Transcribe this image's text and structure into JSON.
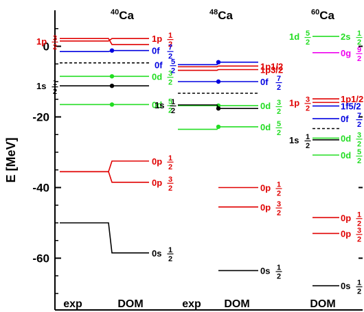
{
  "chart_data": {
    "type": "level-scheme",
    "ylabel": "E [MeV]",
    "ylim": [
      -75,
      10
    ],
    "yticks": [
      0,
      -20,
      -40,
      -60
    ],
    "grid": false,
    "nuclei": [
      {
        "mass": "40",
        "element": "Ca",
        "columns": [
          "exp",
          "DOM"
        ],
        "levels": [
          {
            "color": "#e00000",
            "exp": 1.5,
            "dom": 2.2,
            "left_label": {
              "orb": "1p",
              "num": "3",
              "den": "2"
            },
            "right_label": {
              "orb": "1p",
              "num": "1",
              "den": "2"
            }
          },
          {
            "color": "#e00000",
            "exp": 2.2,
            "dom": 0.5
          },
          {
            "color": "#0000e0",
            "exp": -1.5,
            "dom": -1.2,
            "dot": true,
            "right_label": {
              "orb": "0f",
              "num": "7",
              "den": "2"
            }
          },
          {
            "color": "#000000",
            "dash": true,
            "exp": -4.7,
            "dom": -4.7
          },
          {
            "color": "#22dd22",
            "exp": -8.5,
            "dom": -8.5,
            "dot": true,
            "right_label": {
              "orb": "0d",
              "num": "3",
              "den": "2"
            }
          },
          {
            "color": "#000000",
            "exp": -11.2,
            "dom": -11.2,
            "dot": true,
            "left_label": {
              "orb": "1s",
              "num": "1",
              "den": "2"
            }
          },
          {
            "color": "#22dd22",
            "exp": -16.5,
            "dom": -16.5,
            "dot": true,
            "right_label": {
              "orb": "0d",
              "num": "5",
              "den": "2"
            }
          },
          {
            "color": "#e00000",
            "exp": -35.5,
            "dom": -32.5,
            "right_label": {
              "orb": "0p",
              "num": "1",
              "den": "2"
            }
          },
          {
            "color": "#e00000",
            "exp": -35.5,
            "dom": -38.5,
            "right_label": {
              "orb": "0p",
              "num": "3",
              "den": "2"
            }
          },
          {
            "color": "#000000",
            "exp": -50.0,
            "dom": -58.5,
            "right_label": {
              "orb": "0s",
              "num": "1",
              "den": "2"
            }
          }
        ]
      },
      {
        "mass": "48",
        "element": "Ca",
        "columns": [
          "exp",
          "DOM"
        ],
        "levels": [
          {
            "color": "#0000e0",
            "exp": -5.2,
            "dom": -4.5,
            "dot": true,
            "left_label": {
              "orb": "0f",
              "num": "5",
              "den": "2"
            }
          },
          {
            "color": "#e00000",
            "exp": -5.8,
            "dom": -5.6,
            "right_label": {
              "text": "1p1/2"
            }
          },
          {
            "color": "#e00000",
            "exp": -6.8,
            "dom": -6.6,
            "right_label": {
              "text": "1p3/2"
            }
          },
          {
            "color": "#0000e0",
            "exp": -10.0,
            "dom": -10.0,
            "dot": true,
            "right_label": {
              "orb": "0f",
              "num": "7",
              "den": "2"
            }
          },
          {
            "color": "#000000",
            "dash": true,
            "exp": -13.3,
            "dom": -13.3
          },
          {
            "color": "#22dd22",
            "exp": -16.8,
            "dom": -16.8,
            "dot": true,
            "right_label": {
              "orb": "0d",
              "num": "3",
              "den": "2"
            }
          },
          {
            "color": "#000000",
            "exp": -16.6,
            "dom": -17.6,
            "dot": true,
            "left_label": {
              "orb": "1s",
              "num": "1",
              "den": "2"
            }
          },
          {
            "color": "#22dd22",
            "exp": -23.5,
            "dom": -22.8,
            "dot": true,
            "right_label": {
              "orb": "0d",
              "num": "5",
              "den": "2"
            }
          },
          {
            "color": "#e00000",
            "dom": -40.0,
            "right_label": {
              "orb": "0p",
              "num": "1",
              "den": "2"
            }
          },
          {
            "color": "#e00000",
            "dom": -45.5,
            "right_label": {
              "orb": "0p",
              "num": "3",
              "den": "2"
            }
          },
          {
            "color": "#000000",
            "dom": -63.5,
            "right_label": {
              "orb": "0s",
              "num": "1",
              "den": "2"
            }
          }
        ]
      },
      {
        "mass": "60",
        "element": "Ca",
        "columns": [
          "DOM"
        ],
        "levels": [
          {
            "color": "#22dd22",
            "dom": 2.8,
            "left_label": {
              "orb": "1d",
              "num": "5",
              "den": "2"
            },
            "right_label": {
              "orb": "2s",
              "num": "1",
              "den": "2"
            }
          },
          {
            "color": "#ee00ee",
            "dom": -1.8,
            "right_label": {
              "orb": "0g",
              "num": "9",
              "den": "2"
            }
          },
          {
            "color": "#e00000",
            "dom": -14.9,
            "right_label": {
              "text": "1p1/2"
            }
          },
          {
            "color": "#e00000",
            "dom": -15.9
          },
          {
            "color": "#0000e0",
            "dom": -16.9,
            "right_label": {
              "text": "1f5/2"
            }
          },
          {
            "color": "#0000e0",
            "dom": -20.5,
            "right_label": {
              "orb": "0f",
              "num": "7",
              "den": "2"
            }
          },
          {
            "color": "#000000",
            "dash": true,
            "dom": -23.3
          },
          {
            "color": "#000000",
            "dom": -26.5,
            "left_label": {
              "orb": "1s",
              "num": "1",
              "den": "2"
            }
          },
          {
            "color": "#22dd22",
            "dom": -26.0,
            "right_label": {
              "orb": "0d",
              "num": "3",
              "den": "2"
            }
          },
          {
            "color": "#22dd22",
            "dom": -30.8,
            "right_label": {
              "orb": "0d",
              "num": "5",
              "den": "2"
            }
          },
          {
            "color": "#e00000",
            "dom": -48.5,
            "right_label": {
              "orb": "0p",
              "num": "1",
              "den": "2"
            }
          },
          {
            "color": "#e00000",
            "dom": -53.0,
            "right_label": {
              "orb": "0p",
              "num": "3",
              "den": "2"
            }
          },
          {
            "color": "#000000",
            "dom": -67.8,
            "right_label": {
              "orb": "0s",
              "num": "1",
              "den": "2"
            }
          }
        ],
        "extra_left_labels": [
          {
            "color": "#e00000",
            "at": -15.9,
            "label": {
              "orb": "1p",
              "num": "3",
              "den": "2"
            }
          }
        ]
      }
    ]
  }
}
